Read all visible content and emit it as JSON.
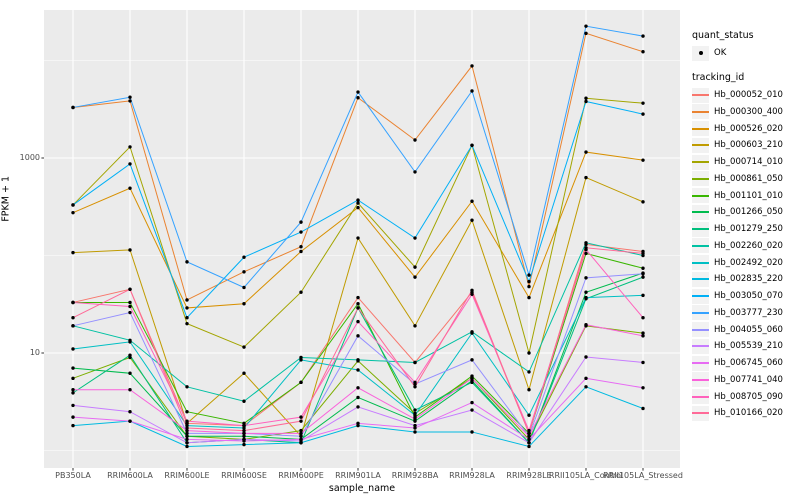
{
  "figure": {
    "panel_bg": "#EBEBEB",
    "grid_color": "#FFFFFF",
    "tick_color": "#333333",
    "axis_text_color": "#4D4D4D"
  },
  "y_axis": {
    "title": "FPKM + 1",
    "tick_labels": [
      "1000",
      "10"
    ],
    "tick_values": [
      1000,
      10
    ]
  },
  "x_axis": {
    "title": "sample_name"
  },
  "legend": {
    "quant_status": {
      "title": "quant_status",
      "items": [
        {
          "label": "OK",
          "symbol": "black-point"
        }
      ]
    },
    "tracking_id": {
      "title": "tracking_id"
    }
  },
  "chart_data": {
    "type": "line",
    "title": "",
    "xlabel": "sample_name",
    "ylabel": "FPKM + 1",
    "y_scale": "log10",
    "ylim": [
      0.66,
      33000
    ],
    "y_major_ticks": [
      10,
      1000
    ],
    "y_minor_gridlines": [
      1,
      100,
      10000
    ],
    "grid": true,
    "legend_position": "right",
    "point_color": "#000000",
    "quant_status_value": "OK",
    "categories": [
      "PB350LA",
      "RRIM600LA",
      "RRIM600LE",
      "RRIM600SE",
      "RRIM600PE",
      "RRIM901LA",
      "RRIM928BA",
      "RRIM928LA",
      "RRIM928LE",
      "RRII105LA_Control",
      "RRII105LA_Stressed"
    ],
    "series": [
      {
        "name": "Hb_000052_010",
        "color": "#F8766D",
        "values": [
          33,
          45,
          1.9,
          1.8,
          5,
          37,
          8,
          42,
          1.5,
          130,
          110
        ]
      },
      {
        "name": "Hb_000300_400",
        "color": "#EA8331",
        "values": [
          3300,
          3850,
          35,
          68,
          123,
          4150,
          1530,
          8800,
          48,
          19000,
          12300
        ]
      },
      {
        "name": "Hb_000526_020",
        "color": "#D89000",
        "values": [
          275,
          490,
          29,
          32,
          110,
          310,
          60,
          360,
          37,
          1150,
          950
        ]
      },
      {
        "name": "Hb_000603_210",
        "color": "#C09B00",
        "values": [
          107,
          114,
          1.9,
          6.2,
          1.4,
          151,
          19,
          230,
          4.2,
          630,
          355
        ]
      },
      {
        "name": "Hb_000714_010",
        "color": "#A3A500",
        "values": [
          330,
          1300,
          20,
          11.5,
          42,
          345,
          76,
          1350,
          10,
          4100,
          3650
        ]
      },
      {
        "name": "Hb_000861_050",
        "color": "#7CAE00",
        "values": [
          5.5,
          9,
          1.4,
          1.3,
          1.6,
          8.3,
          2.4,
          5.5,
          1.3,
          19,
          16
        ]
      },
      {
        "name": "Hb_001101_010",
        "color": "#39B600",
        "values": [
          33,
          33,
          2.5,
          1.9,
          5,
          32,
          2.2,
          5.8,
          1.5,
          105,
          74
        ]
      },
      {
        "name": "Hb_001266_050",
        "color": "#00BB4E",
        "values": [
          7,
          6.2,
          1.4,
          1.4,
          1.3,
          3.5,
          2.0,
          5.2,
          1.2,
          42,
          66
        ]
      },
      {
        "name": "Hb_001279_250",
        "color": "#00BF7D",
        "values": [
          3.9,
          9.5,
          1.2,
          1.3,
          1.2,
          29,
          2.6,
          5.0,
          1.2,
          36,
          60
        ]
      },
      {
        "name": "Hb_002260_020",
        "color": "#00C1A3",
        "values": [
          19,
          13.5,
          4.5,
          3.2,
          9,
          8.5,
          8,
          16.5,
          6.4,
          135,
          100
        ]
      },
      {
        "name": "Hb_002492_020",
        "color": "#00BFC4",
        "values": [
          11,
          13,
          1.8,
          1.7,
          8.5,
          6.7,
          2.3,
          16,
          2.3,
          37,
          39
        ]
      },
      {
        "name": "Hb_002835_220",
        "color": "#00BAE0",
        "values": [
          1.8,
          2.0,
          1.1,
          1.15,
          1.2,
          1.8,
          1.55,
          1.55,
          1.1,
          4.5,
          2.7
        ]
      },
      {
        "name": "Hb_003050_070",
        "color": "#00B0F6",
        "values": [
          330,
          870,
          23,
          96,
          174,
          370,
          151,
          1350,
          54,
          3800,
          2820
        ]
      },
      {
        "name": "Hb_003777_230",
        "color": "#35A2FF",
        "values": [
          3300,
          4200,
          86,
          47,
          220,
          4750,
          720,
          4870,
          63,
          22500,
          17800
        ]
      },
      {
        "name": "Hb_004055_060",
        "color": "#9590FF",
        "values": [
          19,
          26,
          1.5,
          1.5,
          1.4,
          15,
          4.8,
          8.5,
          1.4,
          59,
          65
        ]
      },
      {
        "name": "Hb_005539_210",
        "color": "#C77CFF",
        "values": [
          2.9,
          2.5,
          1.2,
          1.3,
          1.25,
          2.8,
          1.8,
          2.6,
          1.2,
          9.1,
          8
        ]
      },
      {
        "name": "Hb_006745_060",
        "color": "#E76BF3",
        "values": [
          2.2,
          2.0,
          1.3,
          1.25,
          1.3,
          1.9,
          1.7,
          3.1,
          1.3,
          5.5,
          4.4
        ]
      },
      {
        "name": "Hb_007741_040",
        "color": "#FA62DB",
        "values": [
          4.2,
          4.2,
          1.6,
          1.5,
          1.5,
          4.4,
          2.1,
          5.5,
          1.4,
          19.5,
          15
        ]
      },
      {
        "name": "Hb_008705_090",
        "color": "#FF62BC",
        "values": [
          33,
          30,
          2.0,
          1.8,
          2.2,
          21,
          5,
          40,
          1.6,
          115,
          23
        ]
      },
      {
        "name": "Hb_010166_020",
        "color": "#FF6A98",
        "values": [
          23,
          45,
          1.7,
          1.6,
          2.0,
          29,
          4.5,
          44,
          1.5,
          120,
          105
        ]
      }
    ]
  }
}
